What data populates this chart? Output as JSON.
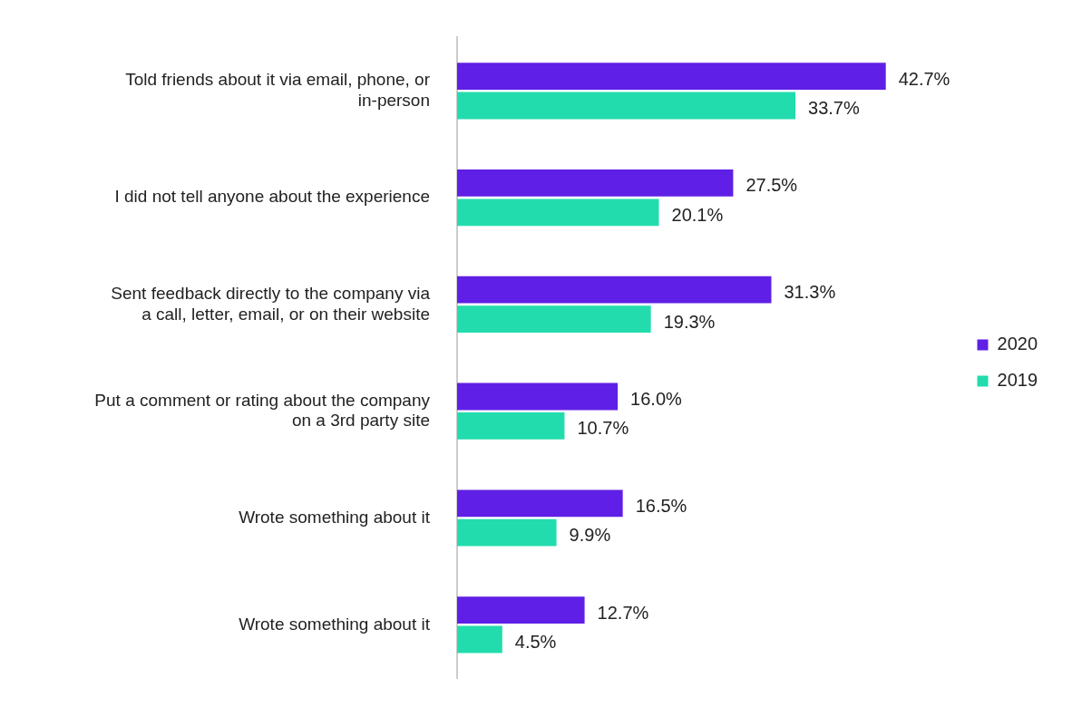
{
  "chart_data": {
    "type": "bar",
    "orientation": "horizontal",
    "categories": [
      "Told friends about it via email, phone, or in-person",
      "I did not tell anyone about the experience",
      "Sent feedback directly to the company via a call, letter, email, or on their website",
      "Put a comment or rating about the company on a 3rd party site",
      "Wrote something about it",
      "Wrote something about it"
    ],
    "series": [
      {
        "name": "2020",
        "color": "#5f1fe6",
        "values": [
          42.7,
          27.5,
          31.3,
          16.0,
          16.5,
          12.7
        ],
        "value_labels": [
          "42.7%",
          "27.5%",
          "31.3%",
          "16.0%",
          "16.5%",
          "12.7%"
        ]
      },
      {
        "name": "2019",
        "color": "#22dcae",
        "values": [
          33.7,
          20.1,
          19.3,
          10.7,
          9.9,
          4.5
        ],
        "value_labels": [
          "33.7%",
          "20.1%",
          "19.3%",
          "10.7%",
          "9.9%",
          "4.5%"
        ]
      }
    ],
    "legend": "right"
  }
}
